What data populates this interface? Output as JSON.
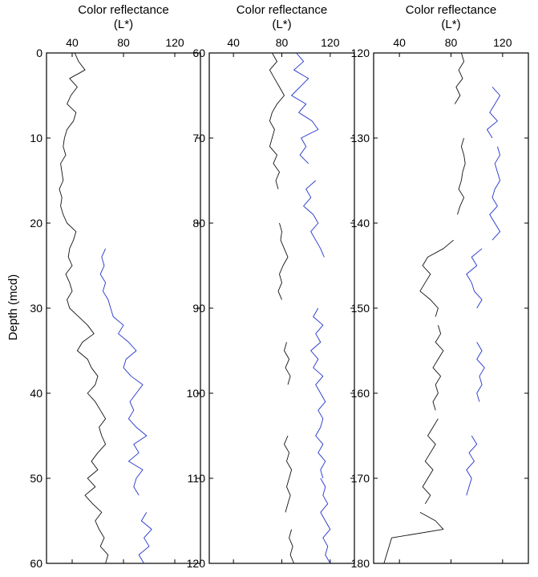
{
  "chart_data": {
    "type": "line",
    "ylabel": "Depth (mcd)",
    "ylabel_font_note": "",
    "colors": {
      "black_series": "#111111",
      "blue_series": "#2233cc"
    },
    "panels": [
      {
        "title_line1": "Color reflectance",
        "title_line2": "(L*)",
        "xlim": [
          20,
          140
        ],
        "xticks": [
          40,
          80,
          120
        ],
        "ylim": [
          0,
          60
        ],
        "yticks": [
          0,
          10,
          20,
          30,
          40,
          50,
          60
        ],
        "series": [
          {
            "color": "black",
            "segments": [
              {
                "depth": [
                  0,
                  1,
                  2,
                  3,
                  4,
                  5,
                  6,
                  7,
                  8,
                  9,
                  10,
                  11,
                  12,
                  13,
                  14,
                  15,
                  16,
                  17,
                  18,
                  19,
                  20,
                  21,
                  22,
                  23,
                  24,
                  25,
                  26,
                  27,
                  28,
                  29,
                  30,
                  31,
                  32,
                  33,
                  34,
                  35,
                  36,
                  37,
                  38,
                  39,
                  40,
                  41,
                  42,
                  43,
                  44,
                  45,
                  46,
                  47,
                  48,
                  49,
                  50,
                  51,
                  52,
                  53,
                  54,
                  55,
                  56,
                  57,
                  58,
                  59,
                  60
                ],
                "value": [
                  42,
                  45,
                  50,
                  38,
                  44,
                  39,
                  36,
                  43,
                  41,
                  36,
                  34,
                  33,
                  35,
                  31,
                  32,
                  33,
                  30,
                  32,
                  31,
                  33,
                  36,
                  43,
                  41,
                  38,
                  37,
                  40,
                  35,
                  38,
                  40,
                  36,
                  38,
                  45,
                  52,
                  57,
                  48,
                  44,
                  52,
                  55,
                  60,
                  58,
                  52,
                  58,
                  62,
                  66,
                  61,
                  63,
                  66,
                  60,
                  55,
                  60,
                  52,
                  58,
                  50,
                  56,
                  63,
                  58,
                  61,
                  65,
                  62,
                  68,
                  66
                ]
              }
            ]
          },
          {
            "color": "blue",
            "segments": [
              {
                "depth": [
                  23,
                  24,
                  25,
                  26,
                  27,
                  28,
                  29,
                  30,
                  31,
                  32,
                  33,
                  34,
                  35,
                  36,
                  37,
                  38,
                  39,
                  40,
                  41,
                  42,
                  43,
                  44,
                  45,
                  46,
                  47,
                  48,
                  49,
                  50,
                  51,
                  52
                ],
                "value": [
                  66,
                  63,
                  65,
                  62,
                  66,
                  64,
                  68,
                  70,
                  72,
                  80,
                  76,
                  84,
                  90,
                  82,
                  80,
                  86,
                  95,
                  90,
                  85,
                  88,
                  84,
                  90,
                  98,
                  88,
                  92,
                  84,
                  95,
                  90,
                  88,
                  92
                ]
              },
              {
                "depth": [
                  54,
                  55,
                  56,
                  57,
                  58,
                  59,
                  60
                ],
                "value": [
                  98,
                  94,
                  102,
                  96,
                  100,
                  92,
                  96
                ]
              }
            ]
          }
        ]
      },
      {
        "title_line1": "Color reflectance",
        "title_line2": "(L*)",
        "xlim": [
          20,
          140
        ],
        "xticks": [
          40,
          80,
          120
        ],
        "ylim": [
          60,
          120
        ],
        "yticks": [
          60,
          70,
          80,
          90,
          100,
          110,
          120
        ],
        "series": [
          {
            "color": "black",
            "segments": [
              {
                "depth": [
                  60,
                  61,
                  62,
                  63,
                  64,
                  65,
                  66,
                  67,
                  68,
                  69,
                  70,
                  71,
                  72,
                  73,
                  74,
                  75,
                  76
                ],
                "value": [
                  72,
                  76,
                  70,
                  74,
                  78,
                  82,
                  76,
                  72,
                  70,
                  74,
                  72,
                  70,
                  76,
                  73,
                  78,
                  75,
                  77
                ]
              },
              {
                "depth": [
                  80,
                  81,
                  82,
                  83,
                  84,
                  85,
                  86,
                  87,
                  88,
                  89
                ],
                "value": [
                  78,
                  80,
                  79,
                  82,
                  85,
                  81,
                  78,
                  80,
                  77,
                  80
                ]
              },
              {
                "depth": [
                  94,
                  95,
                  96,
                  97,
                  98,
                  99
                ],
                "value": [
                  84,
                  82,
                  86,
                  83,
                  87,
                  85
                ]
              },
              {
                "depth": [
                  105,
                  106,
                  107,
                  108,
                  109,
                  110,
                  111,
                  112,
                  113,
                  114
                ],
                "value": [
                  85,
                  82,
                  86,
                  84,
                  88,
                  86,
                  84,
                  87,
                  85,
                  83
                ]
              },
              {
                "depth": [
                  116,
                  117,
                  118,
                  119,
                  120
                ],
                "value": [
                  88,
                  86,
                  89,
                  87,
                  90
                ]
              }
            ]
          },
          {
            "color": "blue",
            "segments": [
              {
                "depth": [
                  60,
                  61,
                  62,
                  63,
                  64,
                  65,
                  66,
                  67,
                  68,
                  69,
                  70,
                  71,
                  72,
                  73
                ],
                "value": [
                  92,
                  98,
                  90,
                  102,
                  95,
                  88,
                  100,
                  94,
                  105,
                  110,
                  96,
                  100,
                  95,
                  102
                ]
              },
              {
                "depth": [
                  75,
                  76,
                  77,
                  78,
                  79,
                  80,
                  81,
                  82,
                  83,
                  84
                ],
                "value": [
                  108,
                  100,
                  104,
                  98,
                  106,
                  110,
                  104,
                  108,
                  112,
                  115
                ]
              },
              {
                "depth": [
                  90,
                  91,
                  92,
                  93,
                  94,
                  95,
                  96,
                  97,
                  98,
                  99,
                  100,
                  101,
                  102,
                  103,
                  104,
                  105,
                  106,
                  107,
                  108,
                  109,
                  110
                ],
                "value": [
                  110,
                  106,
                  114,
                  108,
                  112,
                  104,
                  110,
                  106,
                  114,
                  108,
                  112,
                  116,
                  110,
                  114,
                  112,
                  108,
                  114,
                  110,
                  116,
                  112,
                  114
                ]
              },
              {
                "depth": [
                  110,
                  111,
                  112,
                  113,
                  114,
                  115,
                  116,
                  117,
                  118,
                  119,
                  120
                ],
                "value": [
                  112,
                  116,
                  114,
                  118,
                  112,
                  116,
                  120,
                  114,
                  118,
                  116,
                  120
                ]
              }
            ]
          }
        ]
      },
      {
        "title_line1": "Color reflectance",
        "title_line2": "(L*)",
        "xlim": [
          20,
          140
        ],
        "xticks": [
          40,
          80,
          120
        ],
        "ylim": [
          120,
          180
        ],
        "yticks": [
          120,
          130,
          140,
          150,
          160,
          170,
          180
        ],
        "series": [
          {
            "color": "black",
            "segments": [
              {
                "depth": [
                  120,
                  121,
                  122,
                  123,
                  124,
                  125,
                  126
                ],
                "value": [
                  88,
                  90,
                  86,
                  89,
                  84,
                  87,
                  83
                ]
              },
              {
                "depth": [
                  130,
                  131,
                  132,
                  133,
                  134,
                  135,
                  136,
                  137,
                  138,
                  139
                ],
                "value": [
                  90,
                  88,
                  90,
                  91,
                  89,
                  88,
                  86,
                  90,
                  87,
                  85
                ]
              },
              {
                "depth": [
                  142,
                  143,
                  144,
                  145,
                  146,
                  147,
                  148,
                  149,
                  150,
                  151
                ],
                "value": [
                  82,
                  74,
                  62,
                  58,
                  64,
                  60,
                  56,
                  64,
                  70,
                  68
                ]
              },
              {
                "depth": [
                  152,
                  153,
                  154,
                  155,
                  156,
                  157,
                  158,
                  159,
                  160,
                  161,
                  162
                ],
                "value": [
                  70,
                  72,
                  68,
                  74,
                  70,
                  66,
                  72,
                  68,
                  70,
                  66,
                  68
                ]
              },
              {
                "depth": [
                  163,
                  164,
                  165,
                  166,
                  167,
                  168,
                  169,
                  170,
                  171,
                  172,
                  173
                ],
                "value": [
                  70,
                  66,
                  62,
                  68,
                  64,
                  60,
                  66,
                  62,
                  58,
                  64,
                  60
                ]
              },
              {
                "depth": [
                  174,
                  175,
                  176,
                  177,
                  178,
                  179,
                  180
                ],
                "value": [
                  56,
                  68,
                  74,
                  34,
                  32,
                  30,
                  28
                ]
              }
            ]
          },
          {
            "color": "blue",
            "segments": [
              {
                "depth": [
                  124,
                  125,
                  126,
                  127,
                  128,
                  129,
                  130
                ],
                "value": [
                  112,
                  118,
                  114,
                  110,
                  116,
                  108,
                  112
                ]
              },
              {
                "depth": [
                  131,
                  132,
                  133,
                  134,
                  135,
                  136,
                  137,
                  138,
                  139,
                  140,
                  141,
                  142
                ],
                "value": [
                  116,
                  118,
                  114,
                  116,
                  118,
                  114,
                  112,
                  116,
                  110,
                  114,
                  118,
                  112
                ]
              },
              {
                "depth": [
                  143,
                  144,
                  145,
                  146,
                  147,
                  148,
                  149,
                  150
                ],
                "value": [
                  104,
                  96,
                  100,
                  92,
                  96,
                  98,
                  104,
                  100
                ]
              },
              {
                "depth": [
                  154,
                  155,
                  156,
                  157,
                  158,
                  159,
                  160,
                  161
                ],
                "value": [
                  100,
                  104,
                  100,
                  106,
                  102,
                  104,
                  100,
                  102
                ]
              },
              {
                "depth": [
                  165,
                  166,
                  167,
                  168,
                  169,
                  170,
                  171,
                  172
                ],
                "value": [
                  96,
                  100,
                  94,
                  98,
                  92,
                  96,
                  94,
                  92
                ]
              }
            ]
          }
        ]
      }
    ]
  }
}
